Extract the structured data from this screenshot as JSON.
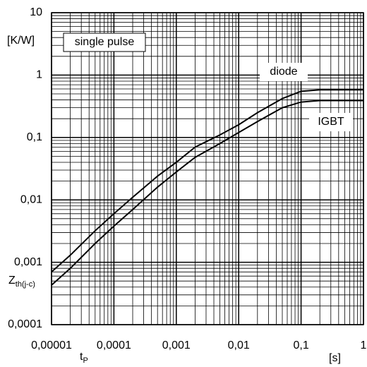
{
  "chart_data": {
    "type": "line",
    "x_label": {
      "main": "t",
      "sub": "P"
    },
    "x_unit": "[s]",
    "y_label": {
      "main": "Z",
      "sub": "th(j-c)"
    },
    "y_unit": "[K/W]",
    "annotations": [
      "single pulse",
      "diode",
      "IGBT"
    ],
    "x": [
      1e-05,
      2e-05,
      5e-05,
      0.0001,
      0.0002,
      0.0005,
      0.001,
      0.002,
      0.005,
      0.01,
      0.02,
      0.05,
      0.1,
      0.2,
      0.5,
      1
    ],
    "series": [
      {
        "name": "diode",
        "color": "#000000",
        "values": [
          0.0007,
          0.0013,
          0.0032,
          0.006,
          0.011,
          0.024,
          0.04,
          0.07,
          0.11,
          0.16,
          0.25,
          0.42,
          0.55,
          0.58,
          0.58,
          0.58
        ]
      },
      {
        "name": "IGBT",
        "color": "#000000",
        "values": [
          0.00043,
          0.0008,
          0.002,
          0.0038,
          0.007,
          0.016,
          0.028,
          0.048,
          0.08,
          0.12,
          0.18,
          0.3,
          0.37,
          0.39,
          0.39,
          0.39
        ]
      }
    ],
    "xlim": [
      1e-05,
      1
    ],
    "ylim": [
      0.0001,
      10
    ],
    "xticks": [
      {
        "value": 1e-05,
        "label": "0,00001"
      },
      {
        "value": 0.0001,
        "label": "0,0001"
      },
      {
        "value": 0.001,
        "label": "0,001"
      },
      {
        "value": 0.01,
        "label": "0,01"
      },
      {
        "value": 0.1,
        "label": "0,1"
      },
      1
    ],
    "yticks": [
      {
        "value": 0.0001,
        "label": "0,0001"
      },
      {
        "value": 0.001,
        "label": "0,001"
      },
      {
        "value": 0.01,
        "label": "0,01"
      },
      {
        "value": 0.1,
        "label": "0,1"
      },
      1,
      10
    ],
    "xscale": "log",
    "yscale": "log",
    "grid": true,
    "minor_grid": true
  }
}
